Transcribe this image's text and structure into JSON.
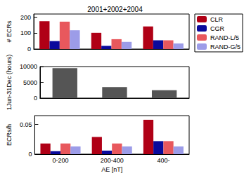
{
  "chart_data": [
    {
      "type": "bar",
      "title": "2001+2002+2004",
      "ylabel": "# ECRs",
      "categories": [
        "0-200",
        "200-400",
        "400-"
      ],
      "series": [
        {
          "name": "CLR",
          "color": "#b00016",
          "values": [
            175,
            102,
            142
          ]
        },
        {
          "name": "CGR",
          "color": "#0a0a9c",
          "values": [
            50,
            20,
            55
          ]
        },
        {
          "name": "RAND-L/5",
          "color": "#e8585d",
          "values": [
            172,
            62,
            55
          ]
        },
        {
          "name": "RAND-G/5",
          "color": "#9c9ce8",
          "values": [
            118,
            45,
            35
          ]
        }
      ],
      "ylim": [
        0,
        220
      ],
      "yticks": [
        0,
        100,
        200
      ],
      "legend": "upper right",
      "tick_labels": "y"
    },
    {
      "type": "bar",
      "ylabel": "1Jun-31Dec (hours)",
      "categories": [
        "0-200",
        "200-400",
        "400-"
      ],
      "values": [
        9500,
        3500,
        2500
      ],
      "color": "#555555",
      "ylim": [
        0,
        10000
      ],
      "yticks": [
        0,
        5000,
        10000
      ],
      "tick_labels": "y"
    },
    {
      "type": "bar",
      "ylabel": "ECRs/h",
      "xlabel": "AE [nT]",
      "categories": [
        "0-200",
        "200-400",
        "400-"
      ],
      "series": [
        {
          "name": "CLR",
          "color": "#b00016",
          "values": [
            0.018,
            0.029,
            0.058
          ]
        },
        {
          "name": "CGR",
          "color": "#0a0a9c",
          "values": [
            0.005,
            0.006,
            0.022
          ]
        },
        {
          "name": "RAND-L/5",
          "color": "#e8585d",
          "values": [
            0.018,
            0.018,
            0.022
          ]
        },
        {
          "name": "RAND-G/5",
          "color": "#9c9ce8",
          "values": [
            0.013,
            0.013,
            0.013
          ]
        }
      ],
      "ylim": [
        0,
        0.065
      ],
      "yticks": [
        0,
        0.05
      ]
    }
  ]
}
